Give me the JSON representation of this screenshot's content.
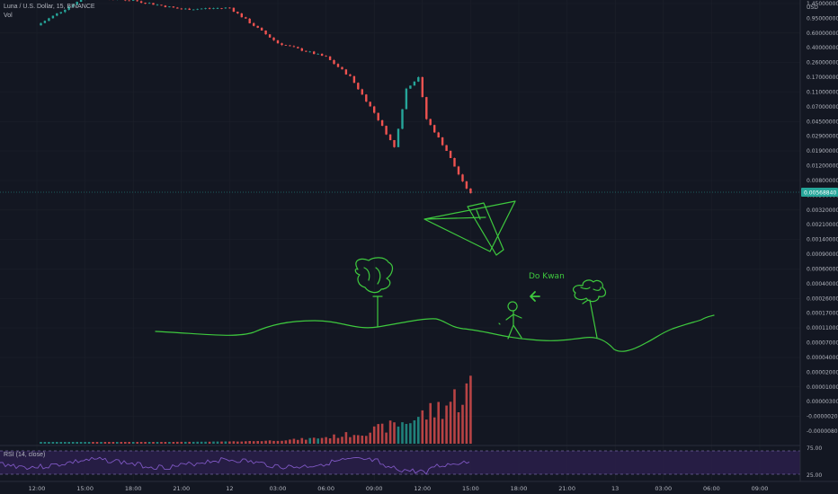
{
  "header": {
    "symbol": "Luna / U.S. Dollar, 15, BINANCE",
    "volume_label": "Vol",
    "rsi_label": "RSI (14, close)"
  },
  "colors": {
    "background": "#131722",
    "up": "#26a69a",
    "down": "#ef5350",
    "rsi_line": "#7e57c2",
    "rsi_band": "#2a1f4a",
    "drawing": "#3ec93e",
    "price_tag": "#26a69a"
  },
  "price_axis": {
    "currency": "USD",
    "labels": [
      "1.45000000",
      "0.95000000",
      "0.60000000",
      "0.40000000",
      "0.26000000",
      "0.17000000",
      "0.11000000",
      "0.07000000",
      "0.04500000",
      "0.02900000",
      "0.01900000",
      "0.01200000",
      "0.00800000",
      "0.00500000",
      "0.00320000",
      "0.00210000",
      "0.00140000",
      "0.00090000",
      "0.00060000",
      "0.00040000",
      "0.00026000",
      "0.00017000",
      "0.00011000",
      "0.00007000",
      "0.00004000",
      "0.00002000",
      "0.00001000",
      "0.00000300",
      "-0.00000200",
      "-0.00000800"
    ],
    "current_price": "0.00568840"
  },
  "rsi_axis": {
    "upper": "75.00",
    "lower": "25.00"
  },
  "time_axis": [
    "12:00",
    "15:00",
    "18:00",
    "21:00",
    "12",
    "03:00",
    "06:00",
    "09:00",
    "12:00",
    "15:00",
    "18:00",
    "21:00",
    "13",
    "03:00",
    "06:00",
    "09:00"
  ],
  "annotation": {
    "text": "Do Kwan"
  },
  "chart_data": {
    "type": "candlestick",
    "title": "Luna / U.S. Dollar, 15, BINANCE",
    "scale": "log",
    "y_unit": "USD",
    "trend_close_points": [
      {
        "t": "11 12:00",
        "price": 0.75
      },
      {
        "t": "11 15:00",
        "price": 1.7
      },
      {
        "t": "11 18:00",
        "price": 1.55
      },
      {
        "t": "11 21:00",
        "price": 1.2
      },
      {
        "t": "12 00:00",
        "price": 1.25
      },
      {
        "t": "12 03:00",
        "price": 0.45
      },
      {
        "t": "12 06:00",
        "price": 0.3
      },
      {
        "t": "12 07:30",
        "price": 0.17
      },
      {
        "t": "12 09:00",
        "price": 0.06
      },
      {
        "t": "12 10:15",
        "price": 0.022
      },
      {
        "t": "12 11:00",
        "price": 0.12
      },
      {
        "t": "12 11:45",
        "price": 0.17
      },
      {
        "t": "12 12:15",
        "price": 0.05
      },
      {
        "t": "12 13:30",
        "price": 0.02
      },
      {
        "t": "12 14:30",
        "price": 0.008
      },
      {
        "t": "12 15:00",
        "price": 0.0057
      }
    ],
    "volume_note": "volume rises sharply toward 12 15:00",
    "rsi_period": 14,
    "rsi_bands": [
      25,
      75
    ]
  }
}
